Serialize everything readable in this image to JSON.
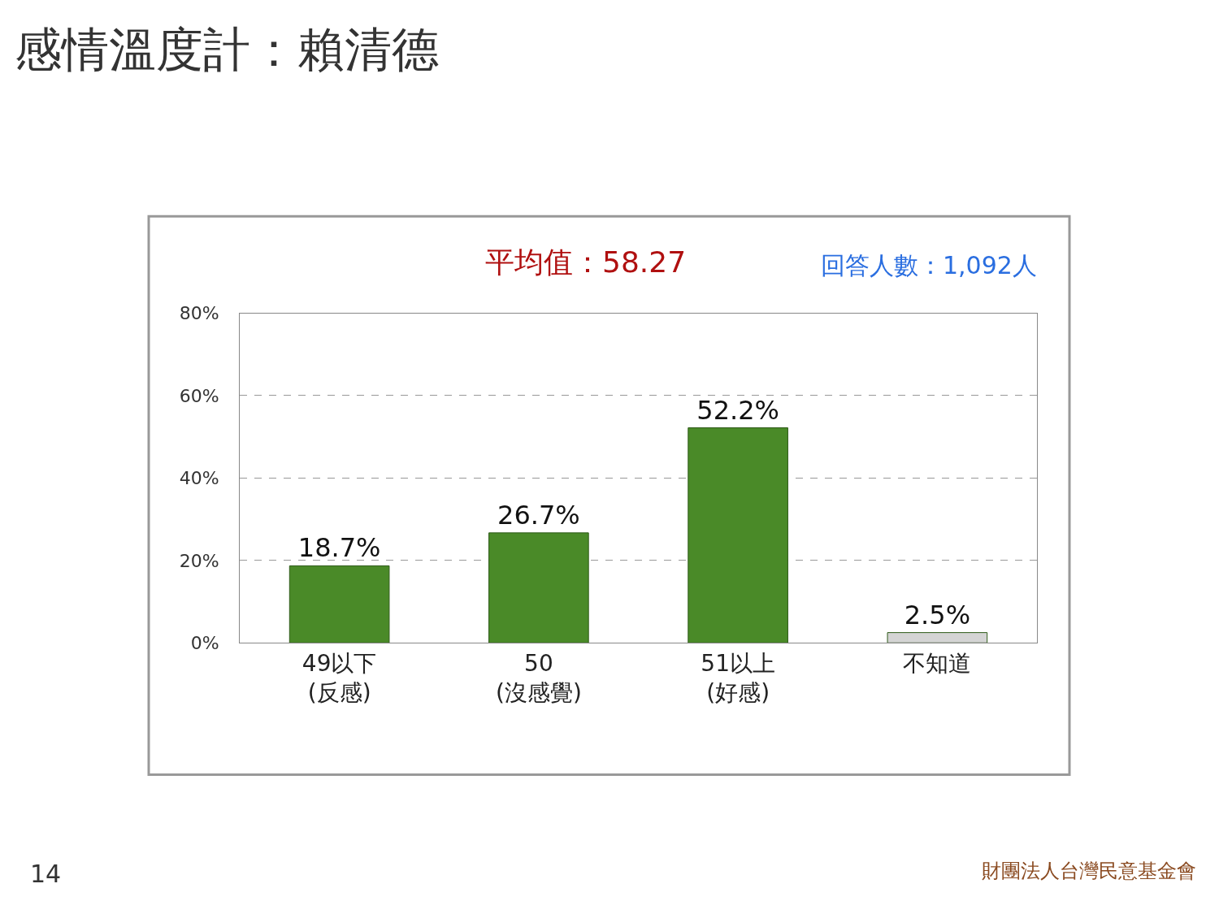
{
  "chart_data": {
    "type": "bar",
    "title": "感情溫度計：賴清德",
    "categories": [
      "49以下\n(反感)",
      "50\n(沒感覺)",
      "51以上\n(好感)",
      "不知道"
    ],
    "values": [
      18.7,
      26.7,
      52.2,
      2.5
    ],
    "colors": [
      "#4a8a28",
      "#4a8a28",
      "#4a8a28",
      "#d4d4d4"
    ],
    "value_labels": [
      "18.7%",
      "26.7%",
      "52.2%",
      "2.5%"
    ],
    "ylim": [
      0,
      80
    ],
    "yticks": [
      {
        "value": 0,
        "label": "0%"
      },
      {
        "value": 20,
        "label": "20%"
      },
      {
        "value": 40,
        "label": "40%"
      },
      {
        "value": 60,
        "label": "60%"
      },
      {
        "value": 80,
        "label": "80%"
      }
    ],
    "grid": "y",
    "legend": false,
    "annotations": [
      "平均值：58.27",
      "回答人數：1,092人",
      "14",
      "財團法人台灣民意基金會"
    ]
  }
}
